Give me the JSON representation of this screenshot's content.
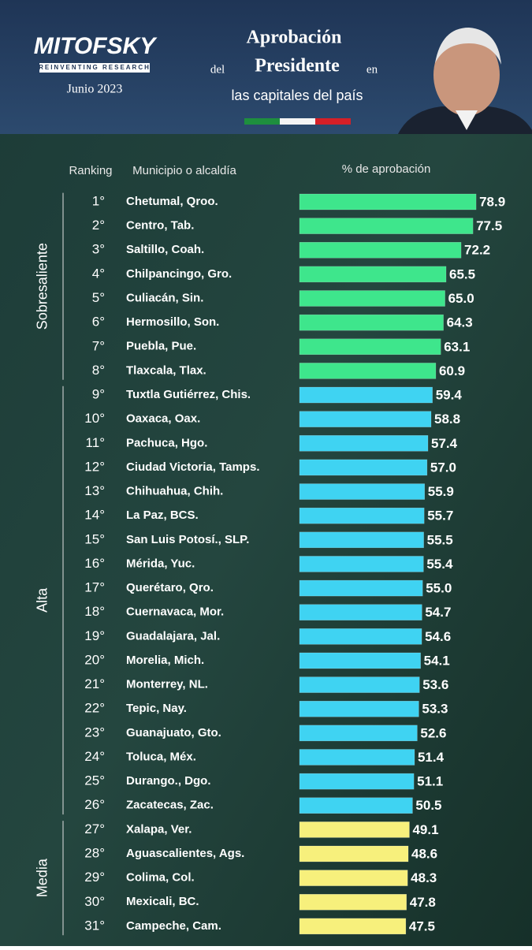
{
  "header": {
    "brand": "MITOFSKY",
    "tagline": "REINVENTING RESEARCH",
    "date": "Junio 2023",
    "title_1": "Aprobación",
    "title_2a": "del",
    "title_2b": "Presidente",
    "title_2c": "en",
    "title_3": "las capitales del país"
  },
  "chart_data": {
    "type": "bar",
    "orientation": "horizontal",
    "column_headers": [
      "Ranking",
      "Municipio o alcaldía",
      "% de aprobación"
    ],
    "series": [
      {
        "name": "Sobresaliente",
        "color": "#3ee68c",
        "ranks": [
          "1°",
          "2°",
          "3°",
          "4°",
          "5°",
          "6°",
          "7°",
          "8°"
        ],
        "categories": [
          "Chetumal, Qroo.",
          "Centro, Tab.",
          "Saltillo, Coah.",
          "Chilpancingo, Gro.",
          "Culiacán, Sin.",
          "Hermosillo, Son.",
          "Puebla, Pue.",
          "Tlaxcala, Tlax."
        ],
        "values": [
          78.9,
          77.5,
          72.2,
          65.5,
          65,
          64.3,
          63.1,
          60.9
        ],
        "value_labels": [
          "78.9",
          "77.5",
          "72.2",
          "65.5",
          "65.0",
          "64.3",
          "63.1",
          "60.9"
        ]
      },
      {
        "name": "Alta",
        "color": "#3fd3f2",
        "ranks": [
          "9°",
          "10°",
          "11°",
          "12°",
          "13°",
          "14°",
          "15°",
          "16°",
          "17°",
          "18°",
          "19°",
          "20°",
          "21°",
          "22°",
          "23°",
          "24°",
          "25°",
          "26°"
        ],
        "categories": [
          "Tuxtla Gutiérrez, Chis.",
          "Oaxaca, Oax.",
          "Pachuca, Hgo.",
          "Ciudad Victoria, Tamps.",
          "Chihuahua, Chih.",
          "La Paz, BCS.",
          "San Luis Potosí., SLP.",
          "Mérida, Yuc.",
          "Querétaro, Qro.",
          "Cuernavaca, Mor.",
          "Guadalajara, Jal.",
          "Morelia, Mich.",
          "Monterrey, NL.",
          "Tepic, Nay.",
          "Guanajuato, Gto.",
          "Toluca, Méx.",
          "Durango., Dgo.",
          "Zacatecas, Zac."
        ],
        "values": [
          59.4,
          58.8,
          57.4,
          57,
          55.9,
          55.7,
          55.5,
          55.4,
          55,
          54.7,
          54.6,
          54.1,
          53.6,
          53.3,
          52.6,
          51.4,
          51.1,
          50.5
        ],
        "value_labels": [
          "59.4",
          "58.8",
          "57.4",
          "57.0",
          "55.9",
          "55.7",
          "55.5",
          "55.4",
          "55.0",
          "54.7",
          "54.6",
          "54.1",
          "53.6",
          "53.3",
          "52.6",
          "51.4",
          "51.1",
          "50.5"
        ]
      },
      {
        "name": "Media",
        "color": "#f7f07c",
        "ranks": [
          "27°",
          "28°",
          "29°",
          "30°",
          "31°"
        ],
        "categories": [
          "Xalapa, Ver.",
          "Aguascalientes, Ags.",
          "Colima, Col.",
          "Mexicali, BC.",
          "Campeche, Cam."
        ],
        "values": [
          49.1,
          48.6,
          48.3,
          47.8,
          47.5
        ],
        "value_labels": [
          "49.1",
          "48.6",
          "48.3",
          "47.8",
          "47.5"
        ]
      }
    ]
  }
}
